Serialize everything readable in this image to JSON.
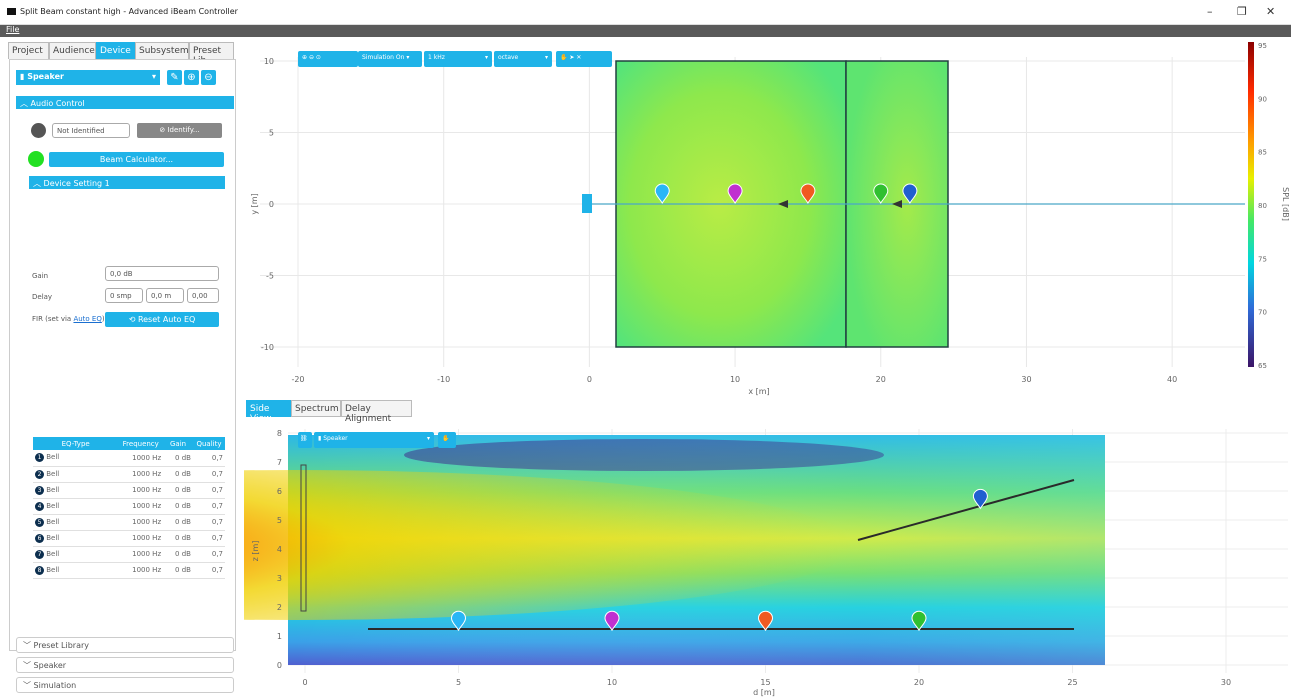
{
  "window": {
    "title": "Split Beam constant high - Advanced iBeam Controller",
    "minimize": "–",
    "restore": "❐",
    "close": "✕"
  },
  "menu": {
    "file": "File"
  },
  "tabs": [
    "Project",
    "Audience",
    "Device",
    "Subsystem",
    "Preset Lib"
  ],
  "active_tab": "Device",
  "device": {
    "selector": "Speaker",
    "audio_control_label": "Audio Control",
    "identify_status": "Not Identified",
    "identify_button": "Identify...",
    "beam_calc_button": "Beam Calculator...",
    "device_setting_label": "Device Setting 1",
    "gain_label": "Gain",
    "gain_value": "0,0 dB",
    "delay_label": "Delay",
    "delay_values": [
      "0 smp",
      "0,0 m",
      "0,00"
    ],
    "fir_label_prefix": "FIR (set via",
    "fir_link": "Auto EQ",
    "fir_label_suffix": ")",
    "reset_autoeq_button": "Reset Auto EQ"
  },
  "eq_table": {
    "headers": [
      "EQ-Type",
      "Frequency",
      "Gain",
      "Quality"
    ],
    "rows": [
      {
        "n": "1",
        "type": "Bell",
        "freq": "1000 Hz",
        "gain": "0 dB",
        "q": "0,7"
      },
      {
        "n": "2",
        "type": "Bell",
        "freq": "1000 Hz",
        "gain": "0 dB",
        "q": "0,7"
      },
      {
        "n": "3",
        "type": "Bell",
        "freq": "1000 Hz",
        "gain": "0 dB",
        "q": "0,7"
      },
      {
        "n": "4",
        "type": "Bell",
        "freq": "1000 Hz",
        "gain": "0 dB",
        "q": "0,7"
      },
      {
        "n": "5",
        "type": "Bell",
        "freq": "1000 Hz",
        "gain": "0 dB",
        "q": "0,7"
      },
      {
        "n": "6",
        "type": "Bell",
        "freq": "1000 Hz",
        "gain": "0 dB",
        "q": "0,7"
      },
      {
        "n": "7",
        "type": "Bell",
        "freq": "1000 Hz",
        "gain": "0 dB",
        "q": "0,7"
      },
      {
        "n": "8",
        "type": "Bell",
        "freq": "1000 Hz",
        "gain": "0 dB",
        "q": "0,7"
      }
    ]
  },
  "collapsed_sections": [
    "Preset Library",
    "Speaker",
    "Simulation"
  ],
  "top_plot": {
    "toolbar": {
      "simulation": "Simulation On",
      "frequency": "1 kHz",
      "resolution": "octave"
    },
    "x_ticks": [
      "-20",
      "-10",
      "0",
      "10",
      "20",
      "30",
      "40"
    ],
    "y_ticks": [
      "10",
      "5",
      "0",
      "-5",
      "-10"
    ],
    "xlabel": "x [m]",
    "ylabel": "y [m]",
    "colorbar_ticks": [
      "95",
      "90",
      "85",
      "80",
      "75",
      "70",
      "65"
    ],
    "colorbar_label": "SPL [dB]"
  },
  "bottom_tabs": [
    "Side View",
    "Spectrum",
    "Delay Alignment"
  ],
  "side_plot": {
    "speaker_selector": "Speaker",
    "x_ticks": [
      "0",
      "5",
      "10",
      "15",
      "20",
      "25",
      "30"
    ],
    "y_ticks": [
      "8",
      "7",
      "6",
      "5",
      "4",
      "3",
      "2",
      "1",
      "0"
    ],
    "xlabel": "d [m]",
    "ylabel": "z [m]"
  },
  "colors": {
    "accent": "#1fb3e8",
    "marker_cyan": "#29b6f6",
    "marker_magenta": "#c030d0",
    "marker_orange": "#f05a20",
    "marker_green": "#30c030",
    "marker_blue": "#2060d0"
  }
}
